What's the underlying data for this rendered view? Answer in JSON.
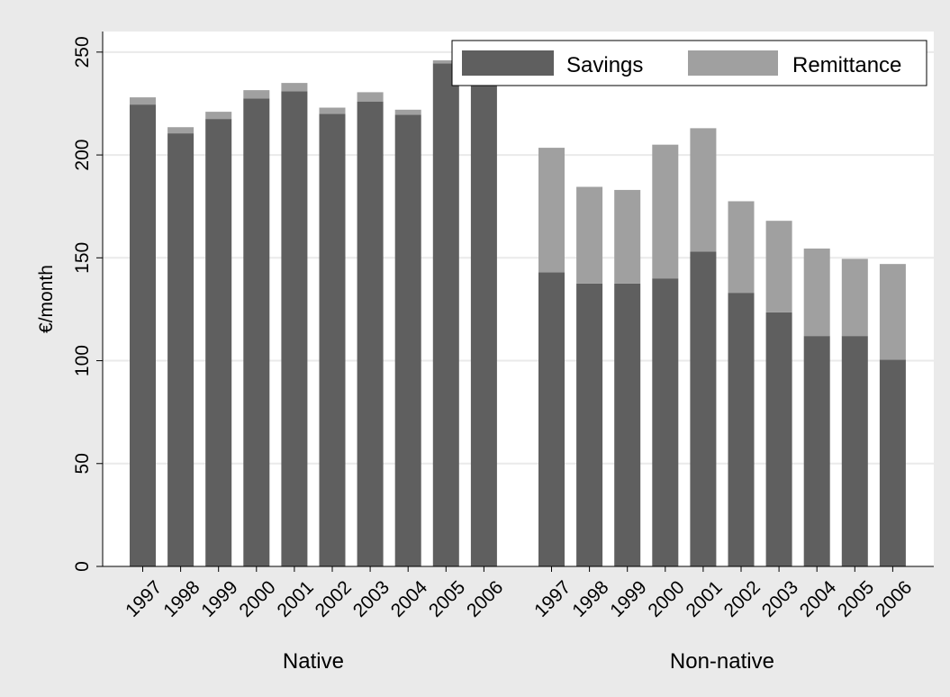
{
  "chart_data": {
    "type": "bar",
    "stacked": true,
    "ylabel": "€/month",
    "ylim": [
      0,
      260
    ],
    "yticks": [
      0,
      50,
      100,
      150,
      200,
      250
    ],
    "grid": true,
    "legend_position": "top-right",
    "colors": {
      "background": "#eaeaea",
      "plot_background": "#ffffff",
      "gridline": "#eaeaea",
      "savings": "#5f5f5f",
      "remittance": "#a0a0a0"
    },
    "groups": [
      {
        "name": "Native",
        "categories": [
          "1997",
          "1998",
          "1999",
          "2000",
          "2001",
          "2002",
          "2003",
          "2004",
          "2005",
          "2006"
        ],
        "series": [
          {
            "name": "Savings",
            "values": [
              224.5,
              210.5,
              217.5,
              227.5,
              231,
              220,
              226,
              219.5,
              244.5,
              238
            ]
          },
          {
            "name": "Remittance",
            "values": [
              3.5,
              3,
              3.5,
              4,
              4,
              3,
              4.5,
              2.5,
              1.5,
              0
            ]
          }
        ]
      },
      {
        "name": "Non-native",
        "categories": [
          "1997",
          "1998",
          "1999",
          "2000",
          "2001",
          "2002",
          "2003",
          "2004",
          "2005",
          "2006"
        ],
        "series": [
          {
            "name": "Savings",
            "values": [
              143,
              137.5,
              137.5,
              140,
              153,
              133,
              123.5,
              112,
              112,
              100.5
            ]
          },
          {
            "name": "Remittance",
            "values": [
              60.5,
              47,
              45.5,
              65,
              60,
              44.5,
              44.5,
              42.5,
              37.5,
              46.5
            ]
          }
        ]
      }
    ],
    "legend": [
      "Savings",
      "Remittance"
    ]
  }
}
